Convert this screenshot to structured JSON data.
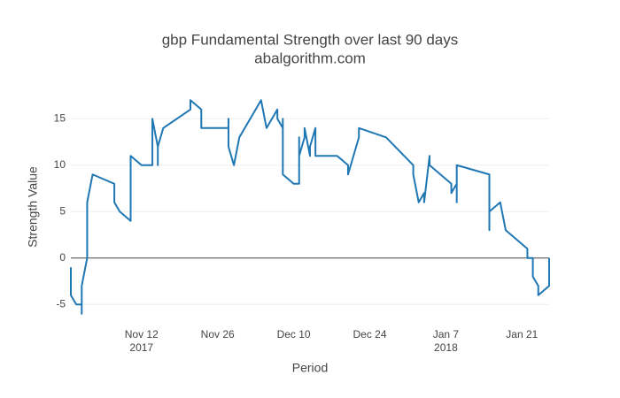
{
  "chart_data": {
    "type": "line",
    "title": "gbp Fundamental Strength over last 90 days",
    "subtitle": "abalgorithm.com",
    "x_label": "Period",
    "y_label": "Strength Value",
    "color": "#1f77b4",
    "grid": true,
    "xlim": [
      "2017-10-30",
      "2018-01-26"
    ],
    "ylim": [
      -6.6,
      17.6
    ],
    "yticks": [
      -5,
      0,
      5,
      10,
      15
    ],
    "xticks": [
      {
        "value": "2017-11-12",
        "label": "Nov 12",
        "sublabel": "2017"
      },
      {
        "value": "2017-11-26",
        "label": "Nov 26"
      },
      {
        "value": "2017-12-10",
        "label": "Dec 10"
      },
      {
        "value": "2017-12-24",
        "label": "Dec 24"
      },
      {
        "value": "2018-01-07",
        "label": "Jan 7",
        "sublabel": "2018"
      },
      {
        "value": "2018-01-21",
        "label": "Jan 21"
      }
    ],
    "x": [
      "2017-10-30",
      "2017-10-30",
      "2017-10-31",
      "2017-11-01",
      "2017-11-01",
      "2017-11-01",
      "2017-11-02",
      "2017-11-02",
      "2017-11-03",
      "2017-11-07",
      "2017-11-07",
      "2017-11-08",
      "2017-11-10",
      "2017-11-10",
      "2017-11-10",
      "2017-11-12",
      "2017-11-14",
      "2017-11-14",
      "2017-11-15",
      "2017-11-15",
      "2017-11-15",
      "2017-11-15",
      "2017-11-16",
      "2017-11-21",
      "2017-11-21",
      "2017-11-23",
      "2017-11-23",
      "2017-11-23",
      "2017-11-23",
      "2017-11-28",
      "2017-11-28",
      "2017-11-28",
      "2017-11-29",
      "2017-11-30",
      "2017-12-03",
      "2017-12-04",
      "2017-12-05",
      "2017-12-07",
      "2017-12-07",
      "2017-12-08",
      "2017-12-08",
      "2017-12-08",
      "2017-12-10",
      "2017-12-11",
      "2017-12-11",
      "2017-12-11",
      "2017-12-12",
      "2017-12-12",
      "2017-12-13",
      "2017-12-13",
      "2017-12-14",
      "2017-12-14",
      "2017-12-18",
      "2017-12-20",
      "2017-12-20",
      "2017-12-21",
      "2017-12-22",
      "2017-12-22",
      "2017-12-27",
      "2018-01-01",
      "2018-01-01",
      "2018-01-02",
      "2018-01-03",
      "2018-01-03",
      "2018-01-04",
      "2018-01-04",
      "2018-01-08",
      "2018-01-08",
      "2018-01-09",
      "2018-01-09",
      "2018-01-09",
      "2018-01-15",
      "2018-01-15",
      "2018-01-15",
      "2018-01-17",
      "2018-01-18",
      "2018-01-22",
      "2018-01-22",
      "2018-01-23",
      "2018-01-23",
      "2018-01-24",
      "2018-01-24",
      "2018-01-26",
      "2018-01-26"
    ],
    "values": [
      -1,
      -4,
      -5,
      -5,
      -6,
      -3,
      0,
      6,
      9,
      8,
      6,
      5,
      4,
      8,
      11,
      10,
      10,
      15,
      12,
      10,
      10,
      12,
      14,
      16,
      17,
      16,
      14,
      15,
      14,
      14,
      15,
      12,
      10,
      13,
      16,
      17,
      14,
      16,
      15,
      14,
      15,
      9,
      8,
      8,
      13,
      11,
      13,
      14,
      11,
      12,
      14,
      11,
      11,
      10,
      9,
      11,
      13,
      14,
      13,
      10,
      9,
      6,
      7,
      6,
      11,
      10,
      8,
      7,
      8,
      6,
      10,
      9,
      3,
      5,
      6,
      3,
      1,
      0,
      0,
      -2,
      -3,
      -4,
      -3,
      0
    ]
  }
}
